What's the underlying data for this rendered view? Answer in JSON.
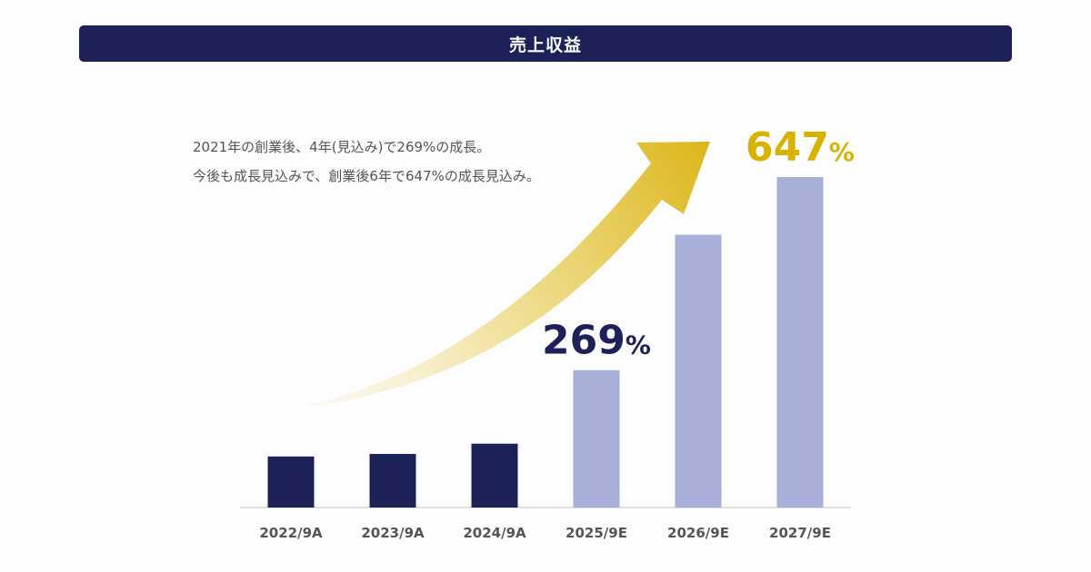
{
  "header": {
    "title": "売上収益"
  },
  "description": {
    "line1": "2021年の創業後、4年(見込み)で269%の成長。",
    "line2": "今後も成長見込みで、創業後6年で647%の成長見込み。"
  },
  "colors": {
    "actual": "#1c2257",
    "estimate": "#a8b0da",
    "gold": "#d9b200",
    "navy_text": "#1c2257",
    "axis_text": "#555555"
  },
  "chart_data": {
    "type": "bar",
    "title": "売上収益",
    "categories": [
      "2022/9A",
      "2023/9A",
      "2024/9A",
      "2025/9E",
      "2026/9E",
      "2027/9E"
    ],
    "values": [
      100,
      105,
      125,
      269,
      534,
      647
    ],
    "series_kind": [
      "actual",
      "actual",
      "actual",
      "estimate",
      "estimate",
      "estimate"
    ],
    "ylim": [
      0,
      647
    ],
    "xlabel": "",
    "ylabel": "",
    "grid": false,
    "annotations": [
      {
        "category": "2025/9E",
        "number": "269",
        "unit": "%",
        "color": "navy"
      },
      {
        "category": "2027/9E",
        "number": "647",
        "unit": "%",
        "color": "gold"
      }
    ]
  }
}
